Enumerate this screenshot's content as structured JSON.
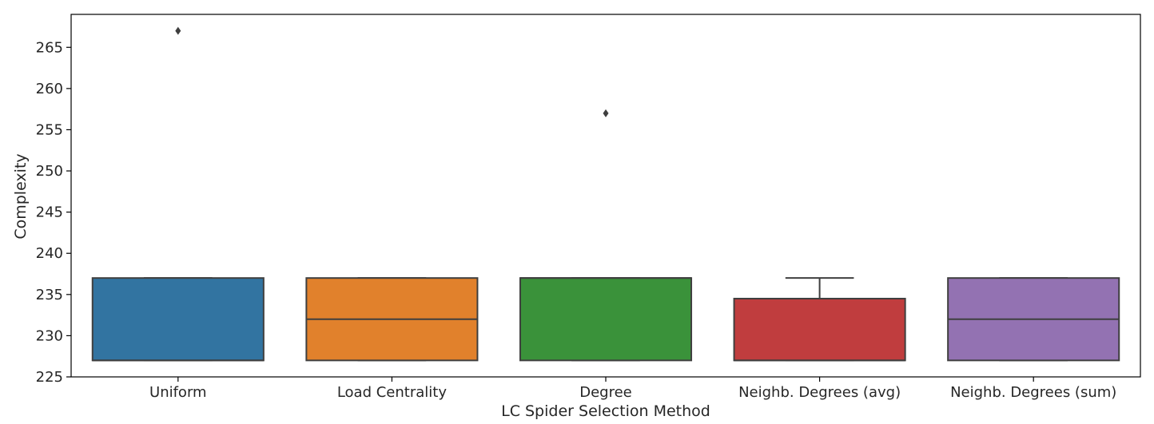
{
  "chart_data": {
    "type": "box",
    "xlabel": "LC Spider Selection Method",
    "ylabel": "Complexity",
    "ylim": [
      225,
      269
    ],
    "yticks": [
      225,
      230,
      235,
      240,
      245,
      250,
      255,
      260,
      265
    ],
    "grid": false,
    "categories": [
      "Uniform",
      "Load Centrality",
      "Degree",
      "Neighb. Degrees (avg)",
      "Neighb. Degrees (sum)"
    ],
    "boxes": [
      {
        "category": "Uniform",
        "q1": 227,
        "median": 227,
        "q3": 237,
        "whisker_low": 227,
        "whisker_high": 237,
        "outliers": [
          267
        ],
        "color": "#3274a1"
      },
      {
        "category": "Load Centrality",
        "q1": 227,
        "median": 232,
        "q3": 237,
        "whisker_low": 227,
        "whisker_high": 237,
        "outliers": [],
        "color": "#e1812c"
      },
      {
        "category": "Degree",
        "q1": 227,
        "median": 237,
        "q3": 237,
        "whisker_low": 227,
        "whisker_high": 237,
        "outliers": [
          257
        ],
        "color": "#3a923a"
      },
      {
        "category": "Neighb. Degrees (avg)",
        "q1": 227,
        "median": 227,
        "q3": 234.5,
        "whisker_low": 227,
        "whisker_high": 237,
        "outliers": [],
        "color": "#c03d3e"
      },
      {
        "category": "Neighb. Degrees (sum)",
        "q1": 227,
        "median": 232,
        "q3": 237,
        "whisker_low": 227,
        "whisker_high": 237,
        "outliers": [],
        "color": "#9372b2"
      }
    ]
  }
}
